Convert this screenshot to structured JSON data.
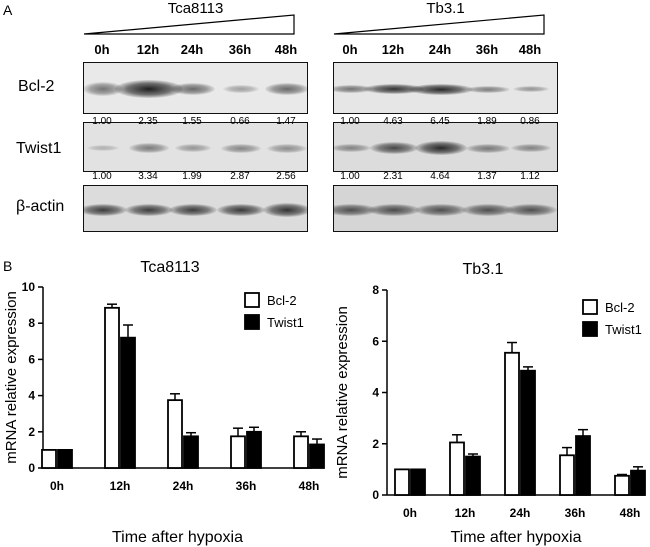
{
  "panel_a_label": "A",
  "panel_b_label": "B",
  "western": {
    "cell_lines": [
      "Tca8113",
      "Tb3.1"
    ],
    "time_labels": [
      "0h",
      "12h",
      "24h",
      "36h",
      "48h"
    ],
    "rows": [
      "Bcl-2",
      "Twist1",
      "β-actin"
    ],
    "ratios": {
      "tca_bcl2": [
        "1.00",
        "2.35",
        "1.55",
        "0.66",
        "1.47"
      ],
      "tca_twist1": [
        "1.00",
        "3.34",
        "1.99",
        "2.87",
        "2.56"
      ],
      "tb_bcl2": [
        "1.00",
        "4.63",
        "6.45",
        "1.89",
        "0.86"
      ],
      "tb_twist1": [
        "1.00",
        "2.31",
        "4.64",
        "1.37",
        "1.12"
      ]
    }
  },
  "chart_data": [
    {
      "type": "bar",
      "title": "Tca8113",
      "xlabel": "Time after hypoxia",
      "ylabel": "mRNA relative expression",
      "categories": [
        "0h",
        "12h",
        "24h",
        "36h",
        "48h"
      ],
      "ylim": [
        0,
        10
      ],
      "yticks": [
        0,
        2,
        4,
        6,
        8,
        10
      ],
      "series": [
        {
          "name": "Bcl-2",
          "fill": "#ffffff",
          "values": [
            1.0,
            8.85,
            3.75,
            1.75,
            1.75
          ],
          "errors": [
            0.0,
            0.2,
            0.35,
            0.45,
            0.25
          ]
        },
        {
          "name": "Twist1",
          "fill": "#000000",
          "values": [
            1.0,
            7.2,
            1.75,
            2.0,
            1.3
          ],
          "errors": [
            0.0,
            0.7,
            0.2,
            0.25,
            0.3
          ]
        }
      ],
      "legend": "top-right"
    },
    {
      "type": "bar",
      "title": "Tb3.1",
      "xlabel": "Time after hypoxia",
      "ylabel": "mRNA relative expression",
      "categories": [
        "0h",
        "12h",
        "24h",
        "36h",
        "48h"
      ],
      "ylim": [
        0,
        8
      ],
      "yticks": [
        0,
        2,
        4,
        6,
        8
      ],
      "series": [
        {
          "name": "Bcl-2",
          "fill": "#ffffff",
          "values": [
            1.0,
            2.05,
            5.55,
            1.55,
            0.75
          ],
          "errors": [
            0.0,
            0.3,
            0.4,
            0.3,
            0.05
          ]
        },
        {
          "name": "Twist1",
          "fill": "#000000",
          "values": [
            1.0,
            1.5,
            4.85,
            2.3,
            0.95
          ],
          "errors": [
            0.0,
            0.1,
            0.15,
            0.25,
            0.15
          ]
        }
      ],
      "legend": "top-right"
    }
  ]
}
